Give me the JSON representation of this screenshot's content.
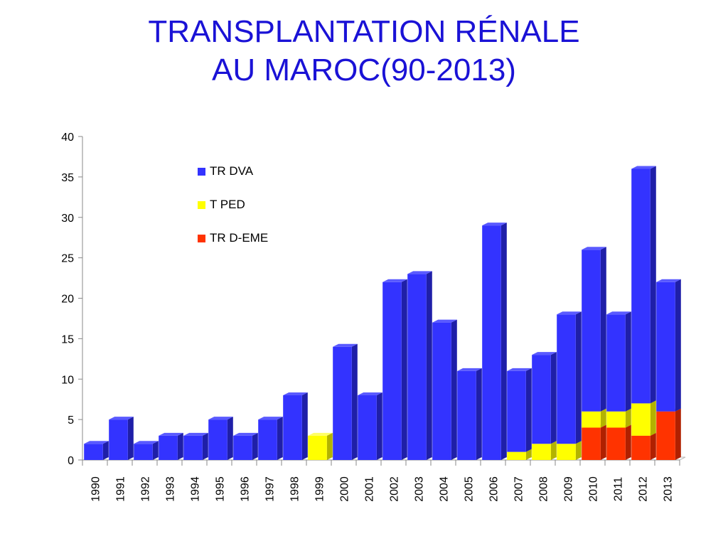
{
  "title": {
    "line1": "TRANSPLANTATION RÉNALE",
    "line2": "AU MAROC(90-2013)"
  },
  "chart_data": {
    "type": "bar",
    "stacked": true,
    "categories": [
      "1990",
      "1991",
      "1992",
      "1993",
      "1994",
      "1995",
      "1996",
      "1997",
      "1998",
      "1999",
      "2000",
      "2001",
      "2002",
      "2003",
      "2004",
      "2005",
      "2006",
      "2007",
      "2008",
      "2009",
      "2010",
      "2011",
      "2012",
      "2013"
    ],
    "series": [
      {
        "name": "TR D-EME",
        "color": "#ff3300",
        "sideColor": "#b02000",
        "topColor": "#ff6a3d",
        "values": [
          0,
          0,
          0,
          0,
          0,
          0,
          0,
          0,
          0,
          0,
          0,
          0,
          0,
          0,
          0,
          0,
          0,
          0,
          0,
          0,
          4,
          4,
          3,
          6
        ]
      },
      {
        "name": "T PED",
        "color": "#ffff00",
        "sideColor": "#b3b300",
        "topColor": "#ffff66",
        "values": [
          0,
          0,
          0,
          0,
          0,
          0,
          0,
          0,
          0,
          3,
          0,
          0,
          0,
          0,
          0,
          0,
          0,
          1,
          2,
          2,
          2,
          2,
          4,
          0
        ]
      },
      {
        "name": "TR DVA",
        "color": "#3333ff",
        "sideColor": "#1f1fa8",
        "topColor": "#5a5aff",
        "values": [
          2,
          5,
          2,
          3,
          3,
          5,
          3,
          5,
          8,
          0,
          14,
          8,
          22,
          23,
          17,
          11,
          29,
          10,
          11,
          16,
          20,
          12,
          29,
          16
        ]
      }
    ],
    "legend_order": [
      "TR DVA",
      "T PED",
      "TR D-EME"
    ],
    "ylim": [
      0,
      40
    ],
    "yticks": [
      0,
      5,
      10,
      15,
      20,
      25,
      30,
      35,
      40
    ],
    "legend_position": "top-left inside plot",
    "grid": false,
    "style": "3d"
  }
}
